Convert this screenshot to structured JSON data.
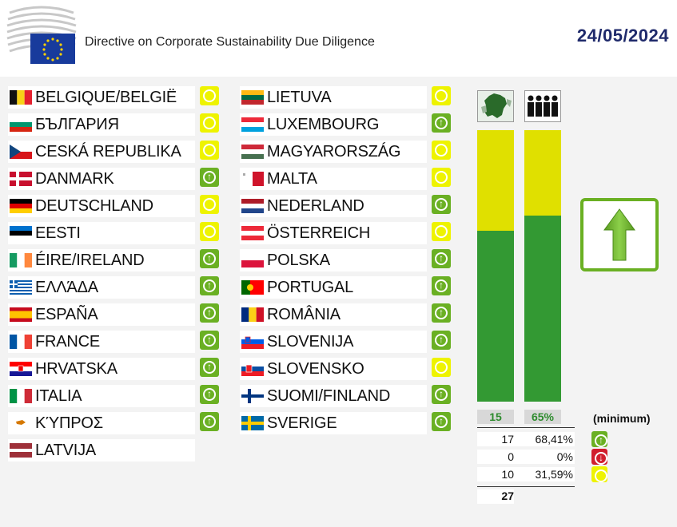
{
  "header": {
    "title": "Directive on Corporate Sustainability Due Diligence",
    "date": "24/05/2024"
  },
  "countries_left": [
    {
      "name": "BELGIQUE/BELGIË",
      "status": "yellow",
      "flag": "be"
    },
    {
      "name": "БЪЛГАРИЯ",
      "status": "yellow",
      "flag": "bg"
    },
    {
      "name": "CESKÁ REPUBLIKA",
      "status": "yellow",
      "flag": "cz"
    },
    {
      "name": "DANMARK",
      "status": "green",
      "flag": "dk"
    },
    {
      "name": "DEUTSCHLAND",
      "status": "yellow",
      "flag": "de"
    },
    {
      "name": "EESTI",
      "status": "yellow",
      "flag": "ee"
    },
    {
      "name": "ÉIRE/IRELAND",
      "status": "green",
      "flag": "ie"
    },
    {
      "name": "ΕΛΛΆΔΑ",
      "status": "green",
      "flag": "gr"
    },
    {
      "name": "ESPAÑA",
      "status": "green",
      "flag": "es"
    },
    {
      "name": "FRANCE",
      "status": "green",
      "flag": "fr"
    },
    {
      "name": "HRVATSKA",
      "status": "green",
      "flag": "hr"
    },
    {
      "name": "ITALIA",
      "status": "green",
      "flag": "it"
    },
    {
      "name": "ΚΎΠΡΟΣ",
      "status": "green",
      "flag": "cy"
    },
    {
      "name": "LATVIJA",
      "status": "",
      "flag": "lv"
    }
  ],
  "countries_right": [
    {
      "name": "LIETUVA",
      "status": "yellow",
      "flag": "lt"
    },
    {
      "name": "LUXEMBOURG",
      "status": "green",
      "flag": "lu"
    },
    {
      "name": "MAGYARORSZÁG",
      "status": "yellow",
      "flag": "hu"
    },
    {
      "name": "MALTA",
      "status": "yellow",
      "flag": "mt"
    },
    {
      "name": "NEDERLAND",
      "status": "green",
      "flag": "nl"
    },
    {
      "name": "ÖSTERREICH",
      "status": "yellow",
      "flag": "at"
    },
    {
      "name": "POLSKA",
      "status": "green",
      "flag": "pl"
    },
    {
      "name": "PORTUGAL",
      "status": "green",
      "flag": "pt"
    },
    {
      "name": "ROMÂNIA",
      "status": "green",
      "flag": "ro"
    },
    {
      "name": "SLOVENIJA",
      "status": "green",
      "flag": "si"
    },
    {
      "name": "SLOVENSKO",
      "status": "yellow",
      "flag": "sk"
    },
    {
      "name": "SUOMI/FINLAND",
      "status": "green",
      "flag": "fi"
    },
    {
      "name": "SVERIGE",
      "status": "green",
      "flag": "se"
    }
  ],
  "summary": {
    "states_label": "15",
    "population_label": "65%",
    "minimum_label": "(minimum)",
    "states_bar": {
      "green_fraction": 0.63,
      "yellow_fraction": 0.37
    },
    "population_bar": {
      "green_fraction": 0.6841,
      "yellow_fraction": 0.3159
    },
    "rows": [
      {
        "count": "17",
        "pct": "68,41%",
        "status": "green"
      },
      {
        "count": "0",
        "pct": "0%",
        "status": "red"
      },
      {
        "count": "10",
        "pct": "31,59%",
        "status": "yellow"
      }
    ],
    "total": "27",
    "result": "up-arrow-icon"
  },
  "colors": {
    "green": "#339933",
    "yellow": "#e0e000",
    "date": "#1f2a6b"
  }
}
